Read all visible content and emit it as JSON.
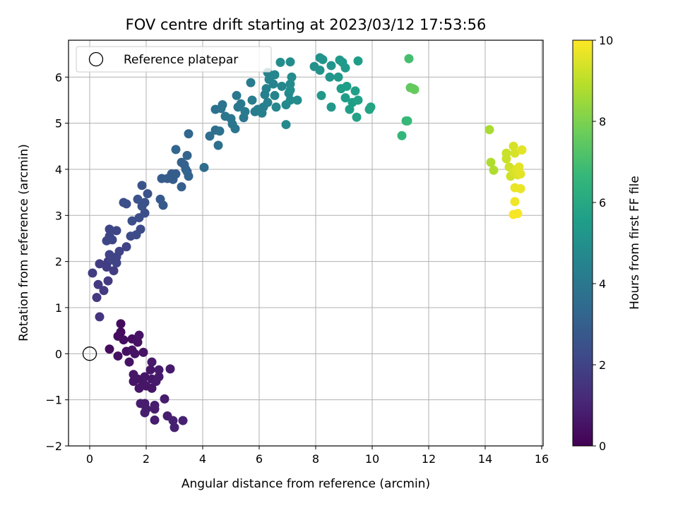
{
  "chart_data": {
    "type": "scatter",
    "title": "FOV centre drift starting at 2023/03/12 17:53:56",
    "xlabel": "Angular distance from reference (arcmin)",
    "ylabel": "Rotation from reference (arcmin)",
    "xlim": [
      -0.75,
      16.05
    ],
    "ylim": [
      -2.0,
      6.8
    ],
    "xticks": [
      0,
      2,
      4,
      6,
      8,
      10,
      12,
      14,
      16
    ],
    "yticks": [
      -2,
      -1,
      0,
      1,
      2,
      3,
      4,
      5,
      6
    ],
    "xtick_labels": [
      "0",
      "2",
      "4",
      "6",
      "8",
      "10",
      "12",
      "14",
      "16"
    ],
    "ytick_labels": [
      "−2",
      "−1",
      "0",
      "1",
      "2",
      "3",
      "4",
      "5",
      "6"
    ],
    "grid": true,
    "legend": {
      "placement": "top-left",
      "entries": [
        "Reference platepar"
      ]
    },
    "colorbar": {
      "label": "Hours from first FF file",
      "range": [
        0,
        10
      ],
      "ticks": [
        0,
        2,
        4,
        6,
        8,
        10
      ],
      "tick_labels": [
        "0",
        "2",
        "4",
        "6",
        "8",
        "10"
      ],
      "colormap": "viridis",
      "stops": [
        "#440154",
        "#482878",
        "#3e4a89",
        "#31688e",
        "#26828e",
        "#1f9e89",
        "#35b779",
        "#6ece58",
        "#b5de2b",
        "#fde725"
      ]
    },
    "reference": {
      "x": 0,
      "y": 0
    },
    "points": [
      [
        1.0,
        0.38,
        0.3
      ],
      [
        1.1,
        0.47,
        0.3
      ],
      [
        1.1,
        0.65,
        0.3
      ],
      [
        0.7,
        0.1,
        0.3
      ],
      [
        1.0,
        -0.05,
        0.4
      ],
      [
        1.2,
        0.3,
        0.4
      ],
      [
        1.3,
        0.05,
        0.4
      ],
      [
        1.5,
        0.32,
        0.4
      ],
      [
        1.4,
        -0.18,
        0.5
      ],
      [
        1.5,
        0.08,
        0.5
      ],
      [
        1.7,
        0.25,
        0.5
      ],
      [
        1.75,
        0.4,
        0.5
      ],
      [
        1.6,
        0.0,
        0.5
      ],
      [
        1.9,
        0.03,
        0.5
      ],
      [
        1.55,
        -0.45,
        0.6
      ],
      [
        1.55,
        -0.6,
        0.6
      ],
      [
        1.7,
        -0.55,
        0.6
      ],
      [
        1.75,
        -0.75,
        0.6
      ],
      [
        1.9,
        -0.65,
        0.6
      ],
      [
        1.95,
        -0.5,
        0.6
      ],
      [
        2.0,
        -0.7,
        0.6
      ],
      [
        2.15,
        -0.35,
        0.6
      ],
      [
        2.2,
        -0.55,
        0.6
      ],
      [
        2.2,
        -0.75,
        0.6
      ],
      [
        2.35,
        -0.6,
        0.7
      ],
      [
        2.45,
        -0.35,
        0.7
      ],
      [
        2.45,
        -0.5,
        0.7
      ],
      [
        2.2,
        -0.18,
        0.7
      ],
      [
        2.85,
        -0.33,
        0.7
      ],
      [
        1.8,
        -1.08,
        0.8
      ],
      [
        1.95,
        -1.08,
        0.8
      ],
      [
        2.0,
        -1.2,
        0.8
      ],
      [
        1.95,
        -1.28,
        0.8
      ],
      [
        2.3,
        -1.12,
        0.8
      ],
      [
        2.3,
        -1.2,
        0.8
      ],
      [
        2.3,
        -1.44,
        0.8
      ],
      [
        2.65,
        -0.98,
        0.8
      ],
      [
        2.75,
        -1.35,
        0.8
      ],
      [
        2.95,
        -1.45,
        0.9
      ],
      [
        3.0,
        -1.6,
        0.9
      ],
      [
        3.3,
        -1.45,
        0.9
      ],
      [
        0.35,
        0.8,
        1.5
      ],
      [
        0.25,
        1.22,
        1.7
      ],
      [
        0.3,
        1.5,
        1.7
      ],
      [
        0.5,
        1.37,
        1.7
      ],
      [
        0.65,
        1.58,
        1.7
      ],
      [
        0.1,
        1.75,
        1.8
      ],
      [
        0.35,
        1.95,
        1.8
      ],
      [
        0.6,
        1.88,
        1.8
      ],
      [
        0.65,
        2.0,
        1.8
      ],
      [
        0.85,
        1.8,
        1.8
      ],
      [
        0.7,
        2.15,
        2.0
      ],
      [
        0.8,
        2.05,
        2.0
      ],
      [
        0.95,
        1.97,
        2.0
      ],
      [
        1.05,
        2.22,
        2.0
      ],
      [
        0.95,
        2.1,
        2.0
      ],
      [
        1.3,
        2.32,
        2.0
      ],
      [
        0.6,
        2.45,
        2.1
      ],
      [
        0.7,
        2.55,
        2.1
      ],
      [
        0.8,
        2.47,
        2.1
      ],
      [
        0.7,
        2.7,
        2.1
      ],
      [
        0.95,
        2.67,
        2.1
      ],
      [
        1.45,
        2.55,
        2.3
      ],
      [
        1.65,
        2.58,
        2.3
      ],
      [
        1.8,
        2.7,
        2.3
      ],
      [
        1.5,
        2.88,
        2.4
      ],
      [
        1.75,
        2.95,
        2.4
      ],
      [
        1.95,
        3.05,
        2.4
      ],
      [
        1.3,
        3.25,
        2.4
      ],
      [
        1.2,
        3.28,
        2.4
      ],
      [
        1.7,
        3.35,
        2.5
      ],
      [
        1.95,
        3.28,
        2.5
      ],
      [
        2.05,
        3.47,
        2.5
      ],
      [
        1.85,
        3.2,
        2.5
      ],
      [
        1.85,
        3.65,
        2.6
      ],
      [
        2.5,
        3.35,
        2.8
      ],
      [
        2.6,
        3.22,
        2.8
      ],
      [
        2.55,
        3.8,
        2.9
      ],
      [
        2.75,
        3.8,
        2.9
      ],
      [
        2.9,
        3.9,
        2.9
      ],
      [
        2.95,
        3.78,
        2.9
      ],
      [
        3.05,
        3.9,
        2.9
      ],
      [
        3.25,
        3.62,
        3.0
      ],
      [
        3.25,
        4.15,
        3.1
      ],
      [
        3.35,
        4.1,
        3.1
      ],
      [
        3.4,
        4.0,
        3.1
      ],
      [
        3.45,
        3.95,
        3.2
      ],
      [
        3.5,
        3.85,
        3.2
      ],
      [
        3.45,
        4.3,
        3.2
      ],
      [
        3.05,
        4.43,
        3.3
      ],
      [
        3.5,
        4.77,
        3.3
      ],
      [
        4.05,
        4.04,
        3.5
      ],
      [
        4.25,
        4.72,
        3.6
      ],
      [
        4.45,
        4.85,
        3.6
      ],
      [
        4.55,
        4.52,
        3.7
      ],
      [
        4.6,
        4.83,
        3.7
      ],
      [
        4.45,
        5.3,
        3.7
      ],
      [
        4.65,
        5.32,
        3.8
      ],
      [
        4.7,
        5.4,
        3.8
      ],
      [
        4.8,
        5.15,
        3.9
      ],
      [
        5.0,
        5.1,
        3.9
      ],
      [
        5.05,
        4.98,
        3.9
      ],
      [
        5.15,
        4.88,
        3.9
      ],
      [
        5.2,
        5.6,
        4.0
      ],
      [
        5.25,
        5.35,
        4.0
      ],
      [
        5.35,
        5.42,
        4.0
      ],
      [
        5.45,
        5.12,
        4.0
      ],
      [
        5.5,
        5.25,
        4.1
      ],
      [
        5.7,
        5.88,
        4.2
      ],
      [
        5.75,
        5.5,
        4.2
      ],
      [
        5.85,
        5.25,
        4.2
      ],
      [
        5.95,
        5.3,
        4.3
      ],
      [
        6.1,
        5.22,
        4.3
      ],
      [
        6.15,
        5.35,
        4.3
      ],
      [
        6.2,
        5.62,
        4.4
      ],
      [
        6.25,
        5.75,
        4.4
      ],
      [
        6.3,
        5.45,
        4.4
      ],
      [
        6.35,
        5.95,
        4.5
      ],
      [
        6.3,
        6.1,
        4.5
      ],
      [
        6.5,
        5.85,
        4.5
      ],
      [
        6.55,
        5.6,
        4.5
      ],
      [
        6.55,
        6.05,
        4.6
      ],
      [
        6.6,
        5.35,
        4.6
      ],
      [
        6.8,
        5.8,
        4.6
      ],
      [
        6.95,
        4.97,
        4.7
      ],
      [
        6.95,
        5.4,
        4.7
      ],
      [
        7.05,
        5.65,
        4.7
      ],
      [
        7.1,
        5.5,
        4.8
      ],
      [
        7.1,
        5.85,
        4.8
      ],
      [
        7.15,
        6.0,
        4.8
      ],
      [
        7.35,
        5.5,
        4.9
      ],
      [
        6.75,
        6.32,
        4.9
      ],
      [
        7.1,
        6.33,
        4.9
      ],
      [
        7.1,
        5.72,
        4.9
      ],
      [
        7.95,
        6.23,
        5.0
      ],
      [
        8.15,
        6.15,
        5.1
      ],
      [
        8.15,
        6.42,
        5.1
      ],
      [
        8.25,
        6.38,
        5.2
      ],
      [
        8.55,
        6.25,
        5.2
      ],
      [
        8.5,
        6.0,
        5.2
      ],
      [
        8.2,
        5.6,
        5.3
      ],
      [
        8.55,
        5.35,
        5.3
      ],
      [
        8.8,
        6.0,
        5.3
      ],
      [
        8.95,
        6.32,
        5.4
      ],
      [
        9.05,
        6.2,
        5.4
      ],
      [
        8.85,
        6.37,
        5.4
      ],
      [
        9.5,
        6.35,
        5.5
      ],
      [
        8.9,
        5.75,
        5.5
      ],
      [
        9.05,
        5.55,
        5.5
      ],
      [
        9.1,
        5.8,
        5.6
      ],
      [
        9.2,
        5.3,
        5.6
      ],
      [
        9.3,
        5.45,
        5.6
      ],
      [
        9.4,
        5.7,
        5.6
      ],
      [
        9.5,
        5.5,
        5.7
      ],
      [
        9.45,
        5.13,
        5.7
      ],
      [
        9.9,
        5.3,
        5.8
      ],
      [
        9.95,
        5.35,
        5.8
      ],
      [
        11.05,
        4.73,
        6.6
      ],
      [
        11.2,
        5.05,
        6.7
      ],
      [
        11.25,
        5.05,
        6.7
      ],
      [
        11.3,
        6.4,
        7.0
      ],
      [
        11.35,
        5.77,
        7.5
      ],
      [
        11.5,
        5.73,
        7.6
      ],
      [
        11.45,
        5.75,
        7.6
      ],
      [
        14.15,
        4.86,
        8.7
      ],
      [
        14.2,
        4.15,
        8.8
      ],
      [
        14.3,
        3.98,
        8.8
      ],
      [
        14.75,
        4.23,
        9.2
      ],
      [
        14.75,
        4.35,
        9.2
      ],
      [
        14.85,
        4.05,
        9.3
      ],
      [
        14.9,
        3.85,
        9.3
      ],
      [
        15.0,
        3.95,
        9.4
      ],
      [
        15.0,
        4.5,
        9.4
      ],
      [
        15.05,
        4.35,
        9.4
      ],
      [
        15.1,
        4.0,
        9.5
      ],
      [
        15.15,
        3.88,
        9.5
      ],
      [
        15.2,
        4.05,
        9.6
      ],
      [
        15.25,
        3.9,
        9.6
      ],
      [
        15.3,
        4.42,
        9.6
      ],
      [
        15.05,
        3.6,
        9.7
      ],
      [
        15.25,
        3.58,
        9.7
      ],
      [
        15.05,
        3.3,
        9.8
      ],
      [
        15.0,
        3.02,
        9.9
      ],
      [
        15.15,
        3.04,
        9.9
      ]
    ]
  }
}
